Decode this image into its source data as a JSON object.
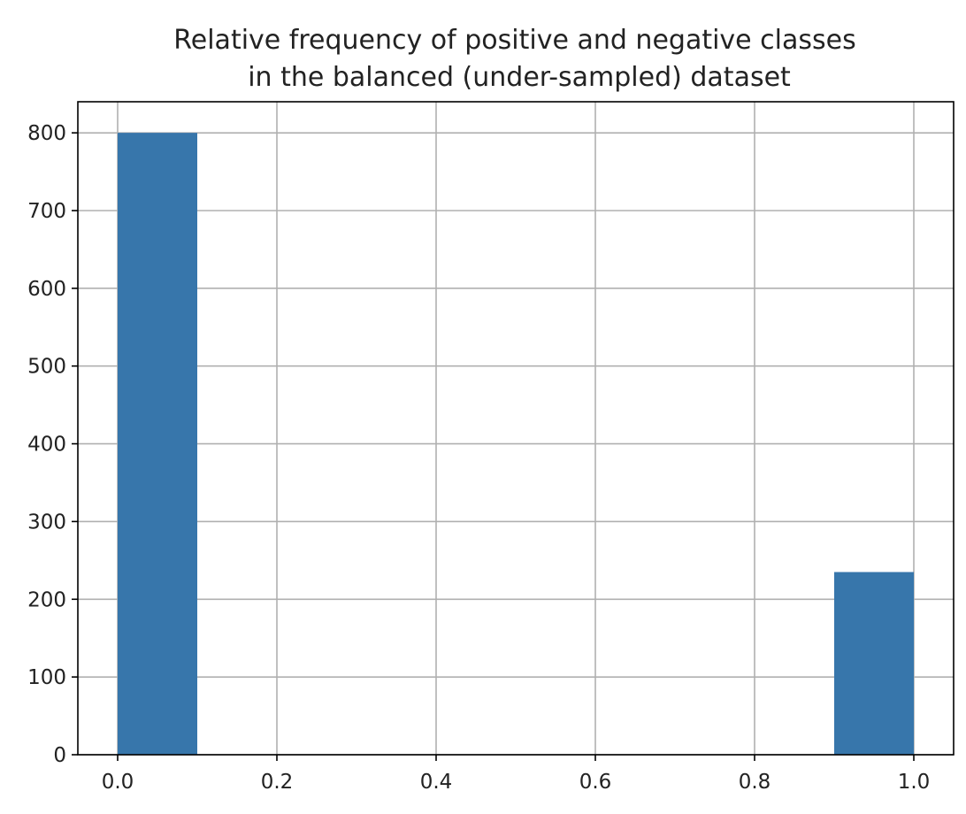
{
  "chart_data": {
    "type": "bar",
    "title_lines": [
      "Relative frequency of positive and negative classes",
      "in the balanced (under-sampled) dataset"
    ],
    "xlabel": "",
    "ylabel": "",
    "bins": [
      {
        "x0": 0.0,
        "x1": 0.1,
        "value": 800
      },
      {
        "x0": 0.1,
        "x1": 0.2,
        "value": 0
      },
      {
        "x0": 0.2,
        "x1": 0.3,
        "value": 0
      },
      {
        "x0": 0.3,
        "x1": 0.4,
        "value": 0
      },
      {
        "x0": 0.4,
        "x1": 0.5,
        "value": 0
      },
      {
        "x0": 0.5,
        "x1": 0.6,
        "value": 0
      },
      {
        "x0": 0.6,
        "x1": 0.7,
        "value": 0
      },
      {
        "x0": 0.7,
        "x1": 0.8,
        "value": 0
      },
      {
        "x0": 0.8,
        "x1": 0.9,
        "value": 0
      },
      {
        "x0": 0.9,
        "x1": 1.0,
        "value": 235
      }
    ],
    "xlim": [
      -0.05,
      1.05
    ],
    "ylim": [
      0,
      840
    ],
    "xticks": [
      0.0,
      0.2,
      0.4,
      0.6,
      0.8,
      1.0
    ],
    "xtick_labels": [
      "0.0",
      "0.2",
      "0.4",
      "0.6",
      "0.8",
      "1.0"
    ],
    "yticks": [
      0,
      100,
      200,
      300,
      400,
      500,
      600,
      700,
      800
    ],
    "ytick_labels": [
      "0",
      "100",
      "200",
      "300",
      "400",
      "500",
      "600",
      "700",
      "800"
    ],
    "grid": true,
    "bar_color": "#3776ab",
    "grid_color": "#b0b0b0"
  }
}
